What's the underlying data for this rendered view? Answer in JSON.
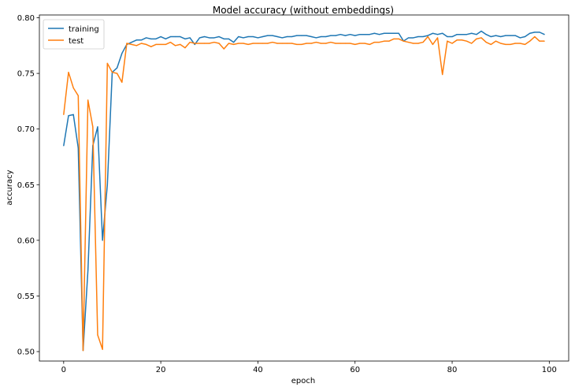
{
  "chart_data": {
    "type": "line",
    "title": "Model accuracy (without embeddings)",
    "xlabel": "epoch",
    "ylabel": "accuracy",
    "xlim": [
      -5,
      104
    ],
    "ylim": [
      0.4915,
      0.8025
    ],
    "xticks": [
      0,
      20,
      40,
      60,
      80,
      100
    ],
    "yticks": [
      0.5,
      0.55,
      0.6,
      0.65,
      0.7,
      0.75,
      0.8
    ],
    "ytick_labels": [
      "0.50",
      "0.55",
      "0.60",
      "0.65",
      "0.70",
      "0.75",
      "0.80"
    ],
    "grid": false,
    "legend_position": "top-left",
    "series": [
      {
        "name": "training",
        "color": "#1f77b4",
        "x": [
          0,
          1,
          2,
          3,
          4,
          5,
          6,
          7,
          8,
          9,
          10,
          11,
          12,
          13,
          14,
          15,
          16,
          17,
          18,
          19,
          20,
          21,
          22,
          23,
          24,
          25,
          26,
          27,
          28,
          29,
          30,
          31,
          32,
          33,
          34,
          35,
          36,
          37,
          38,
          39,
          40,
          41,
          42,
          43,
          44,
          45,
          46,
          47,
          48,
          49,
          50,
          51,
          52,
          53,
          54,
          55,
          56,
          57,
          58,
          59,
          60,
          61,
          62,
          63,
          64,
          65,
          66,
          67,
          68,
          69,
          70,
          71,
          72,
          73,
          74,
          75,
          76,
          77,
          78,
          79,
          80,
          81,
          82,
          83,
          84,
          85,
          86,
          87,
          88,
          89,
          90,
          91,
          92,
          93,
          94,
          95,
          96,
          97,
          98,
          99
        ],
        "values": [
          0.685,
          0.712,
          0.713,
          0.683,
          0.501,
          0.573,
          0.685,
          0.702,
          0.6,
          0.65,
          0.751,
          0.755,
          0.768,
          0.776,
          0.778,
          0.78,
          0.78,
          0.782,
          0.781,
          0.781,
          0.783,
          0.781,
          0.783,
          0.783,
          0.783,
          0.781,
          0.782,
          0.776,
          0.782,
          0.783,
          0.782,
          0.782,
          0.783,
          0.781,
          0.781,
          0.778,
          0.783,
          0.782,
          0.783,
          0.783,
          0.782,
          0.783,
          0.784,
          0.784,
          0.783,
          0.782,
          0.783,
          0.783,
          0.784,
          0.784,
          0.784,
          0.783,
          0.782,
          0.783,
          0.783,
          0.784,
          0.784,
          0.785,
          0.784,
          0.785,
          0.784,
          0.785,
          0.785,
          0.785,
          0.786,
          0.785,
          0.786,
          0.786,
          0.786,
          0.786,
          0.779,
          0.782,
          0.782,
          0.783,
          0.783,
          0.784,
          0.786,
          0.785,
          0.786,
          0.783,
          0.783,
          0.785,
          0.785,
          0.785,
          0.786,
          0.785,
          0.788,
          0.785,
          0.783,
          0.784,
          0.783,
          0.784,
          0.784,
          0.784,
          0.782,
          0.783,
          0.786,
          0.787,
          0.787,
          0.785
        ]
      },
      {
        "name": "test",
        "color": "#ff7f0e",
        "x": [
          0,
          1,
          2,
          3,
          4,
          5,
          6,
          7,
          8,
          9,
          10,
          11,
          12,
          13,
          14,
          15,
          16,
          17,
          18,
          19,
          20,
          21,
          22,
          23,
          24,
          25,
          26,
          27,
          28,
          29,
          30,
          31,
          32,
          33,
          34,
          35,
          36,
          37,
          38,
          39,
          40,
          41,
          42,
          43,
          44,
          45,
          46,
          47,
          48,
          49,
          50,
          51,
          52,
          53,
          54,
          55,
          56,
          57,
          58,
          59,
          60,
          61,
          62,
          63,
          64,
          65,
          66,
          67,
          68,
          69,
          70,
          71,
          72,
          73,
          74,
          75,
          76,
          77,
          78,
          79,
          80,
          81,
          82,
          83,
          84,
          85,
          86,
          87,
          88,
          89,
          90,
          91,
          92,
          93,
          94,
          95,
          96,
          97,
          98,
          99
        ],
        "values": [
          0.713,
          0.751,
          0.737,
          0.73,
          0.501,
          0.726,
          0.702,
          0.515,
          0.502,
          0.759,
          0.751,
          0.75,
          0.742,
          0.777,
          0.776,
          0.775,
          0.777,
          0.776,
          0.774,
          0.776,
          0.776,
          0.776,
          0.778,
          0.775,
          0.776,
          0.773,
          0.778,
          0.777,
          0.777,
          0.777,
          0.777,
          0.778,
          0.777,
          0.772,
          0.777,
          0.776,
          0.777,
          0.777,
          0.776,
          0.777,
          0.777,
          0.777,
          0.777,
          0.778,
          0.777,
          0.777,
          0.777,
          0.777,
          0.776,
          0.776,
          0.777,
          0.777,
          0.778,
          0.777,
          0.777,
          0.778,
          0.777,
          0.777,
          0.777,
          0.777,
          0.776,
          0.777,
          0.777,
          0.776,
          0.778,
          0.778,
          0.779,
          0.779,
          0.781,
          0.781,
          0.779,
          0.778,
          0.777,
          0.777,
          0.778,
          0.783,
          0.776,
          0.782,
          0.749,
          0.779,
          0.777,
          0.78,
          0.78,
          0.779,
          0.777,
          0.781,
          0.782,
          0.778,
          0.776,
          0.779,
          0.777,
          0.776,
          0.776,
          0.777,
          0.777,
          0.776,
          0.779,
          0.783,
          0.779,
          0.779
        ]
      }
    ]
  }
}
